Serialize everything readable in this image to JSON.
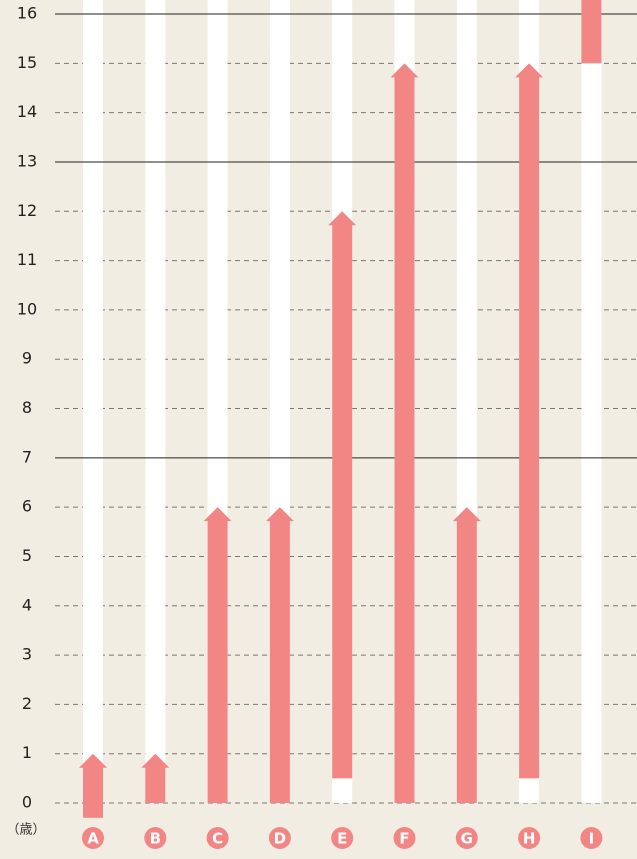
{
  "chart_data": {
    "type": "range-bar",
    "categories": [
      "A",
      "B",
      "C",
      "D",
      "E",
      "F",
      "G",
      "H",
      "I"
    ],
    "series": [
      {
        "color": "#f28684",
        "start": [
          -0.3,
          0,
          0,
          0,
          0.5,
          0,
          0,
          0.5,
          15
        ],
        "end": [
          1,
          1,
          6,
          6,
          12,
          15,
          6,
          15,
          16.3
        ]
      }
    ],
    "ylim": [
      0,
      16
    ],
    "yticks": [
      0,
      1,
      2,
      3,
      4,
      5,
      6,
      7,
      8,
      9,
      10,
      11,
      12,
      13,
      14,
      15,
      16
    ],
    "solid_gridlines": [
      7,
      13,
      16
    ],
    "y_label": "（歳）",
    "category_color": "#f28684",
    "grid": true
  }
}
